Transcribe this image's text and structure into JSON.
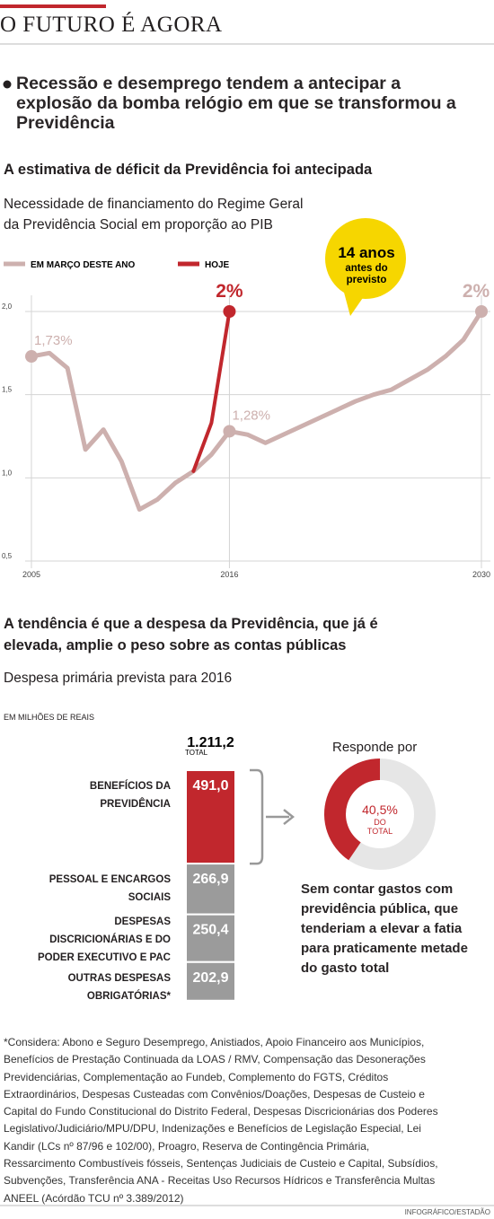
{
  "header": {
    "title": "O FUTURO É AGORA",
    "lead": "Recessão e desemprego tendem a antecipar a\nexplosão da bomba relógio em que se transformou a\nPrevidência"
  },
  "chart_data": [
    {
      "type": "line",
      "title": "A estimativa de déficit da Previdência foi antecipada",
      "subtitle": "Necessidade de financiamento do Regime Geral\nda Previdência Social em proporção ao PIB",
      "xlim": [
        2005,
        2030
      ],
      "xticks": [
        2005,
        2016,
        2030
      ],
      "ylim": [
        0.5,
        2.0
      ],
      "yticks": [
        {
          "value": 0.5,
          "label": "0,5"
        },
        {
          "value": 1.0,
          "label": "1,0"
        },
        {
          "value": 1.5,
          "label": "1,5"
        },
        {
          "value": 2.0,
          "label": "2,0"
        }
      ],
      "grid": true,
      "legend": "top-left",
      "annotation": {
        "title": "14 anos",
        "lines": [
          "antes do",
          "previsto"
        ],
        "color": "#f6d600"
      },
      "series": [
        {
          "name": "EM MARÇO DESTE ANO",
          "color": "#cdb0ae",
          "x": [
            2005,
            2006,
            2007,
            2008,
            2009,
            2010,
            2011,
            2012,
            2013,
            2014,
            2015,
            2016,
            2017,
            2018,
            2019,
            2020,
            2021,
            2022,
            2023,
            2024,
            2025,
            2026,
            2027,
            2028,
            2029,
            2030
          ],
          "values": [
            1.73,
            1.75,
            1.66,
            1.17,
            1.29,
            1.1,
            0.81,
            0.87,
            0.97,
            1.04,
            1.14,
            1.28,
            1.26,
            1.21,
            1.26,
            1.31,
            1.36,
            1.41,
            1.46,
            1.5,
            1.53,
            1.59,
            1.65,
            1.73,
            1.83,
            2.0
          ],
          "value_labels": [
            "1,73%",
            null,
            null,
            null,
            null,
            null,
            null,
            null,
            null,
            null,
            null,
            "1,28%",
            null,
            null,
            null,
            null,
            null,
            null,
            null,
            null,
            null,
            null,
            null,
            null,
            null,
            "2%"
          ]
        },
        {
          "name": "HOJE",
          "color": "#c1272d",
          "x": [
            2014,
            2015,
            2016
          ],
          "values": [
            1.04,
            1.33,
            2.0
          ],
          "value_labels": [
            null,
            null,
            "2%"
          ]
        }
      ]
    },
    {
      "type": "stacked-bar",
      "title": "A tendência é que a despesa da Previdência, que já é\nelevada, amplie o peso sobre as contas públicas",
      "subtitle": "Despesa primária prevista para 2016",
      "unit": "EM MILHÕES DE REAIS",
      "total": {
        "name": "TOTAL",
        "value": 1211.2,
        "label": "1.211,2"
      },
      "categories": [
        "BENEFÍCIOS DA\nPREVIDÊNCIA",
        "PESSOAL E ENCARGOS\nSOCIAIS",
        "DESPESAS\nDISCRICIONÁRIAS E DO\nPODER EXECUTIVO E PAC",
        "OUTRAS DESPESAS\nOBRIGATÓRIAS*"
      ],
      "values": [
        491.0,
        266.9,
        250.4,
        202.9
      ],
      "value_labels": [
        "491,0",
        "266,9",
        "250,4",
        "202,9"
      ],
      "colors": [
        "#c1272d",
        "#9b9b9b",
        "#9b9b9b",
        "#9b9b9b"
      ]
    },
    {
      "type": "donut",
      "title": "Responde por",
      "value": 40.5,
      "value_label": "40,5%",
      "sublabel": "DO\nTOTAL",
      "colors": [
        "#c1272d",
        "#e6e6e6"
      ],
      "note": "Sem contar gastos com\nprevidência pública, que\ntenderiam a elevar a fatia\npara praticamente metade\ndo gasto total"
    }
  ],
  "footnote": "*Considera: Abono e Seguro Desemprego, Anistiados, Apoio Financeiro aos Municípios,\nBenefícios de Prestação Continuada da LOAS / RMV, Compensação das Desonerações\nPrevidenciárias, Complementação ao Fundeb, Complemento do FGTS, Créditos\nExtraordinários, Despesas Custeadas com Convênios/Doações, Despesas de Custeio e\nCapital do Fundo Constitucional do Distrito Federal, Despesas Discricionárias dos Poderes\nLegislativo/Judiciário/MPU/DPU, Indenizações e Benefícios de Legislação Especial, Lei\nKandir (LCs nº 87/96 e 102/00), Proagro, Reserva de Contingência Primária,\nRessarcimento Combustíveis fósseis, Sentenças Judiciais de Custeio e Capital, Subsídios,\nSubvenções, Transferência ANA - Receitas Uso Recursos Hídricos e Transferência Multas\nANEEL (Acórdão TCU nº 3.389/2012)",
  "credit": "INFOGRÁFICO/ESTADÃO"
}
